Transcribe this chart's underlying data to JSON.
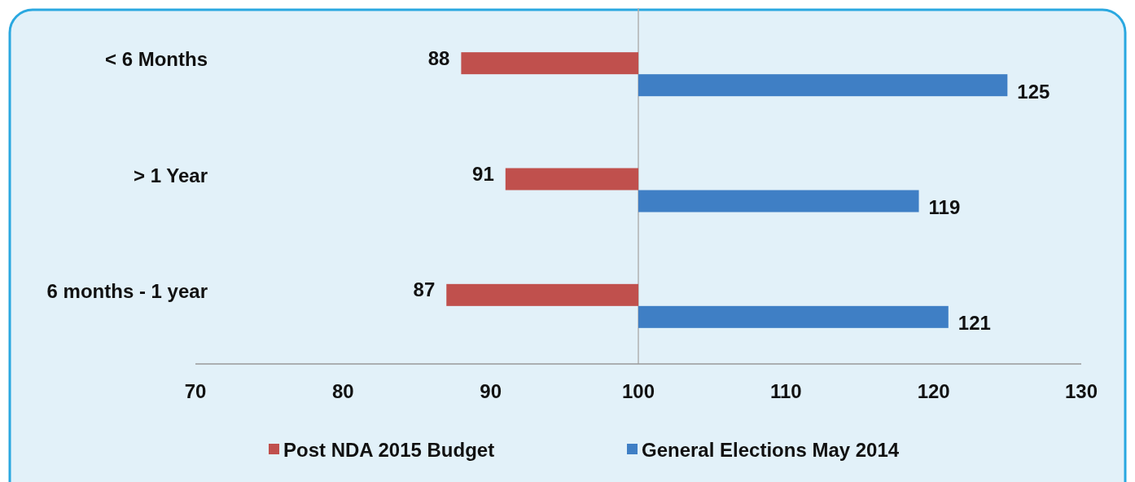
{
  "chart_data": {
    "type": "bar",
    "orientation": "horizontal",
    "categories": [
      "< 6 Months",
      "> 1 Year",
      "6 months - 1 year"
    ],
    "series": [
      {
        "name": "Post NDA 2015 Budget",
        "color": "#c0504d",
        "base": [
          100,
          100,
          100
        ],
        "values": [
          -12,
          -9,
          -13
        ],
        "value_labels": [
          "88",
          "91",
          "87"
        ]
      },
      {
        "name": "General Elections May 2014",
        "color": "#3f7fc5",
        "base": [
          100,
          100,
          100
        ],
        "values": [
          25,
          19,
          21
        ],
        "value_labels": [
          "125",
          "119",
          "121"
        ]
      }
    ],
    "xlim": [
      70,
      130
    ],
    "xticks": [
      70,
      80,
      90,
      100,
      110,
      120,
      130
    ],
    "ref_lines": [
      {
        "axis": "x",
        "value": 100,
        "color": "#b0b0b0"
      }
    ],
    "legend": "bottom",
    "grid": false
  }
}
